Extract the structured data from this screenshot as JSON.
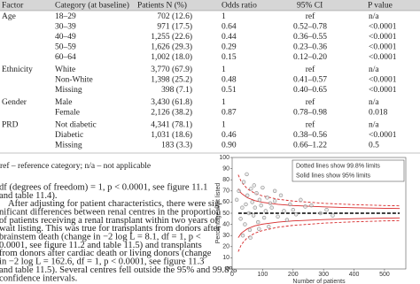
{
  "table": {
    "header": [
      "Factor",
      "Category (at baseline)",
      "Patients N (%)",
      "Odds ratio",
      "95% CI",
      "P value"
    ],
    "groups": [
      {
        "factor": "Age",
        "rows": [
          [
            "18–29",
            "702 (12.6)",
            "1",
            "ref",
            "n/a"
          ],
          [
            "30–39",
            "971 (17.5)",
            "0.64",
            "0.52–0.78",
            "<0.0001"
          ],
          [
            "40–49",
            "1,255 (22.6)",
            "0.44",
            "0.36–0.55",
            "<0.0001"
          ],
          [
            "50–59",
            "1,626 (29.3)",
            "0.29",
            "0.23–0.36",
            "<0.0001"
          ],
          [
            "60–64",
            "1,002 (18.0)",
            "0.15",
            "0.12–0.20",
            "<0.0001"
          ]
        ]
      },
      {
        "factor": "Ethnicity",
        "rows": [
          [
            "White",
            "3,770 (67.9)",
            "1",
            "ref",
            "n/a"
          ],
          [
            "Non-White",
            "1,398 (25.2)",
            "0.48",
            "0.41–0.57",
            "<0.0001"
          ],
          [
            "Missing",
            "398 (7.1)",
            "0.51",
            "0.40–0.65",
            "<0.0001"
          ]
        ]
      },
      {
        "factor": "Gender",
        "rows": [
          [
            "Male",
            "3,430 (61.8)",
            "1",
            "ref",
            "n/a"
          ],
          [
            "Female",
            "2,126 (38.2)",
            "0.87",
            "0.78–0.98",
            "0.018"
          ]
        ]
      },
      {
        "factor": "PRD",
        "rows": [
          [
            "Not diabetic",
            "4,341 (78.1)",
            "1",
            "ref",
            "n/a"
          ],
          [
            "Diabetic",
            "1,031 (18.6)",
            "0.46",
            "0.38–0.56",
            "<0.0001"
          ],
          [
            "Missing",
            "183 (3.3)",
            "0.90",
            "0.66–1.22",
            "0.5"
          ]
        ]
      }
    ],
    "footnote": "ref – reference category; n/a – not applicable"
  },
  "text": {
    "lines": [
      "df (degrees of freedom) = 1, p < 0.0001, see figure 11.1",
      "and table 11.4).",
      "    After adjusting for patient characteristics, there were sig-",
      "nificant differences between renal centres in the proportion",
      "of patients receiving a renal transplant within two years of",
      "wait listing. This was true for transplants from donors after",
      "brainstem death (change in −2 log L = 8.1, df = 1, p <",
      "0.0001, see figure 11.2 and table 11.5) and transplants",
      "from donors after cardiac death or living donors (change",
      "in −2 log L = 162.6, df = 1, p < 0.0001, see figure 11.3",
      "and table 11.5). Several centres fell outside the 95% and 99.8%",
      "confidence intervals."
    ]
  },
  "chart_data": {
    "type": "scatter",
    "xlabel": "Number of patients",
    "ylabel": "Percentage wait listed",
    "xlim": [
      0,
      570
    ],
    "ylim": [
      0,
      100
    ],
    "xticks": [
      0,
      100,
      200,
      300,
      400,
      500
    ],
    "yticks": [
      0,
      10,
      20,
      30,
      40,
      50,
      60,
      70,
      80,
      90,
      100
    ],
    "point_color": "#8a8a8a",
    "x": [
      15,
      22,
      28,
      33,
      38,
      42,
      45,
      50,
      55,
      58,
      62,
      66,
      70,
      75,
      80,
      85,
      90,
      95,
      100,
      105,
      110,
      115,
      120,
      125,
      130,
      140,
      150,
      160,
      170,
      180,
      190,
      200,
      210,
      225,
      240,
      260,
      290,
      310,
      330,
      35,
      48,
      60,
      72,
      88,
      140
    ],
    "values": [
      62,
      70,
      45,
      55,
      78,
      40,
      58,
      66,
      50,
      35,
      72,
      60,
      48,
      55,
      68,
      42,
      62,
      57,
      73,
      46,
      52,
      64,
      38,
      59,
      55,
      61,
      47,
      66,
      52,
      44,
      58,
      53,
      49,
      62,
      56,
      57,
      50,
      53,
      48,
      30,
      85,
      28,
      75,
      36,
      70
    ],
    "limit_x": [
      20,
      30,
      50,
      75,
      100,
      150,
      200,
      300,
      400,
      500,
      550
    ],
    "limits": [
      {
        "label": "Dotted lines show 99.8% limits",
        "dash": "dotted",
        "color": "#d62728",
        "upper": [
          84.5,
          78.2,
          71.8,
          67.8,
          65.5,
          62.6,
          60.9,
          58.9,
          57.7,
          56.9,
          56.6
        ],
        "lower": [
          15.5,
          21.8,
          28.2,
          32.2,
          34.5,
          37.4,
          39.1,
          41.1,
          42.3,
          43.1,
          43.4
        ]
      },
      {
        "label": "Solid lines show 95% limits",
        "dash": "solid",
        "color": "#d62728",
        "upper": [
          71.9,
          67.9,
          63.9,
          61.3,
          59.8,
          58.0,
          56.9,
          55.7,
          54.9,
          54.4,
          54.2
        ],
        "lower": [
          28.1,
          32.1,
          36.1,
          38.7,
          40.2,
          42.0,
          43.1,
          44.3,
          45.1,
          45.6,
          45.8
        ]
      }
    ],
    "mean": {
      "values": [
        50,
        50,
        50,
        50,
        50,
        50,
        50,
        50,
        50,
        50,
        50
      ],
      "color": "#000000"
    }
  }
}
